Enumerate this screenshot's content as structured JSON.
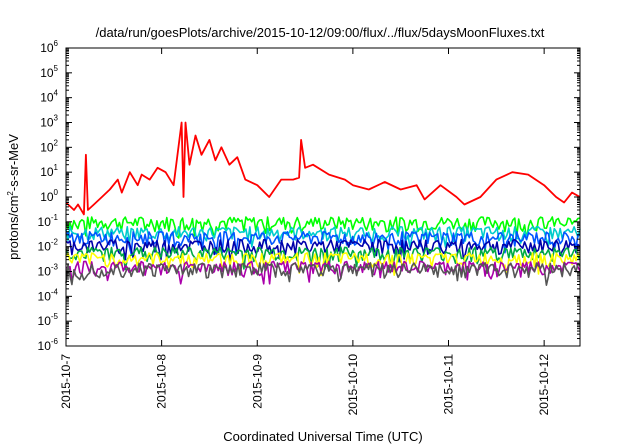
{
  "chart_data": {
    "type": "line",
    "title": "/data/run/goesPlots/archive/2015-10-12/09:00/flux/../flux/5daysMoonFluxes.txt",
    "xlabel": "Coordinated Universal Time (UTC)",
    "ylabel_prefix": "protons/cm",
    "ylabel_exp": "2",
    "ylabel_suffix": "-s-sr-MeV",
    "yscale": "log",
    "ylim": [
      1e-06,
      1000000.0
    ],
    "xlim": [
      "2015-10-07 00:00",
      "2015-10-12 09:00"
    ],
    "x_ticks": [
      "2015-10-7",
      "2015-10-8",
      "2015-10-9",
      "2015-10-10",
      "2015-10-11",
      "2015-10-12"
    ],
    "y_ticks": [
      {
        "base": "10",
        "exp": "6"
      },
      {
        "base": "10",
        "exp": "5"
      },
      {
        "base": "10",
        "exp": "4"
      },
      {
        "base": "10",
        "exp": "3"
      },
      {
        "base": "10",
        "exp": "2"
      },
      {
        "base": "10",
        "exp": "1"
      },
      {
        "base": "10",
        "exp": "0"
      },
      {
        "base": "10",
        "exp": "-1"
      },
      {
        "base": "10",
        "exp": "-2"
      },
      {
        "base": "10",
        "exp": "-3"
      },
      {
        "base": "10",
        "exp": "-4"
      },
      {
        "base": "10",
        "exp": "-5"
      },
      {
        "base": "10",
        "exp": "-6"
      }
    ],
    "grid": false,
    "series": [
      {
        "color": "#ff0000",
        "x": [
          "2015-10-07 00:00",
          "2015-10-07 02:00",
          "2015-10-07 03:00",
          "2015-10-07 04:30",
          "2015-10-07 05:00",
          "2015-10-07 05:30",
          "2015-10-07 07:00",
          "2015-10-07 09:00",
          "2015-10-07 11:00",
          "2015-10-07 13:00",
          "2015-10-07 14:00",
          "2015-10-07 16:00",
          "2015-10-07 18:00",
          "2015-10-07 19:00",
          "2015-10-07 21:00",
          "2015-10-07 23:00",
          "2015-10-08 01:00",
          "2015-10-08 03:00",
          "2015-10-08 05:00",
          "2015-10-08 05:30",
          "2015-10-08 06:00",
          "2015-10-08 07:00",
          "2015-10-08 08:30",
          "2015-10-08 10:00",
          "2015-10-08 12:00",
          "2015-10-08 13:30",
          "2015-10-08 15:00",
          "2015-10-08 17:00",
          "2015-10-08 19:00",
          "2015-10-08 21:00",
          "2015-10-09 00:00",
          "2015-10-09 03:00",
          "2015-10-09 06:00",
          "2015-10-09 09:00",
          "2015-10-09 10:30",
          "2015-10-09 11:00",
          "2015-10-09 12:00",
          "2015-10-09 14:00",
          "2015-10-09 18:00",
          "2015-10-09 22:00",
          "2015-10-10 00:00",
          "2015-10-10 04:00",
          "2015-10-10 08:00",
          "2015-10-10 12:00",
          "2015-10-10 16:00",
          "2015-10-10 18:00",
          "2015-10-10 22:00",
          "2015-10-11 02:00",
          "2015-10-11 04:00",
          "2015-10-11 08:00",
          "2015-10-11 12:00",
          "2015-10-11 16:00",
          "2015-10-11 20:00",
          "2015-10-12 00:00",
          "2015-10-12 03:00",
          "2015-10-12 05:00",
          "2015-10-12 07:00",
          "2015-10-12 09:00"
        ],
        "values": [
          0.6,
          0.3,
          0.5,
          0.2,
          50,
          0.3,
          0.5,
          1.0,
          2.0,
          5.0,
          1.5,
          10,
          3.0,
          8.0,
          5.0,
          15,
          10,
          3.0,
          1000,
          1.0,
          1000,
          20,
          300,
          50,
          200,
          30,
          100,
          20,
          40,
          5.0,
          3.0,
          1.0,
          5.0,
          5.0,
          6.0,
          200,
          15,
          20,
          8.0,
          5.0,
          3.0,
          2.0,
          4.0,
          2.0,
          3.0,
          0.8,
          3.0,
          1.0,
          0.5,
          1.0,
          5.0,
          10,
          8.0,
          3.0,
          1.0,
          0.6,
          1.5,
          1.0
        ]
      },
      {
        "color": "#00ff00",
        "level": 0.1
      },
      {
        "color": "#00cccc",
        "level": 0.04
      },
      {
        "color": "#0055ff",
        "level": 0.025
      },
      {
        "color": "#0000aa",
        "level": 0.012
      },
      {
        "color": "#00aa44",
        "level": 0.006
      },
      {
        "color": "#ffff00",
        "level": 0.0035
      },
      {
        "color": "#aa00aa",
        "level": 0.0016
      },
      {
        "color": "#555555",
        "level": 0.0014
      }
    ]
  }
}
